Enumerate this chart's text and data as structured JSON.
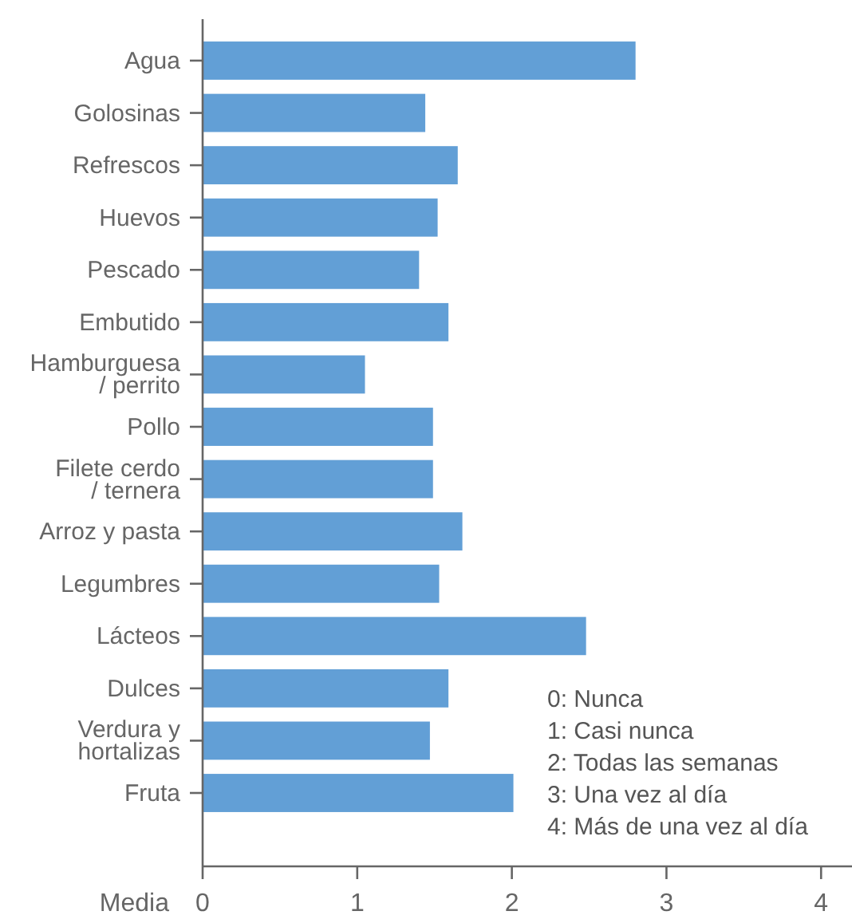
{
  "chart_data": {
    "type": "bar",
    "orientation": "horizontal",
    "xlabel": "Media",
    "categories": [
      "Agua",
      "Golosinas",
      "Refrescos",
      "Huevos",
      "Pescado",
      "Embutido",
      "Hamburguesa\n/ perrito",
      "Pollo",
      "Filete cerdo\n/ ternera",
      "Arroz y pasta",
      "Legumbres",
      "Lácteos",
      "Dulces",
      "Verdura y\nhortalizas",
      "Fruta"
    ],
    "values": [
      2.8,
      1.44,
      1.65,
      1.52,
      1.4,
      1.59,
      1.05,
      1.49,
      1.49,
      1.68,
      1.53,
      2.48,
      1.59,
      1.47,
      2.01
    ],
    "color": "#629fd6",
    "xlim": [
      0,
      4.2
    ],
    "xticks": [
      0,
      1,
      2,
      3,
      4
    ],
    "grid": false,
    "annotations": [
      "0: Nunca",
      "1: Casi nunca",
      "2: Todas las semanas",
      "3: Una vez al día",
      "4: Más de una vez al día"
    ]
  }
}
